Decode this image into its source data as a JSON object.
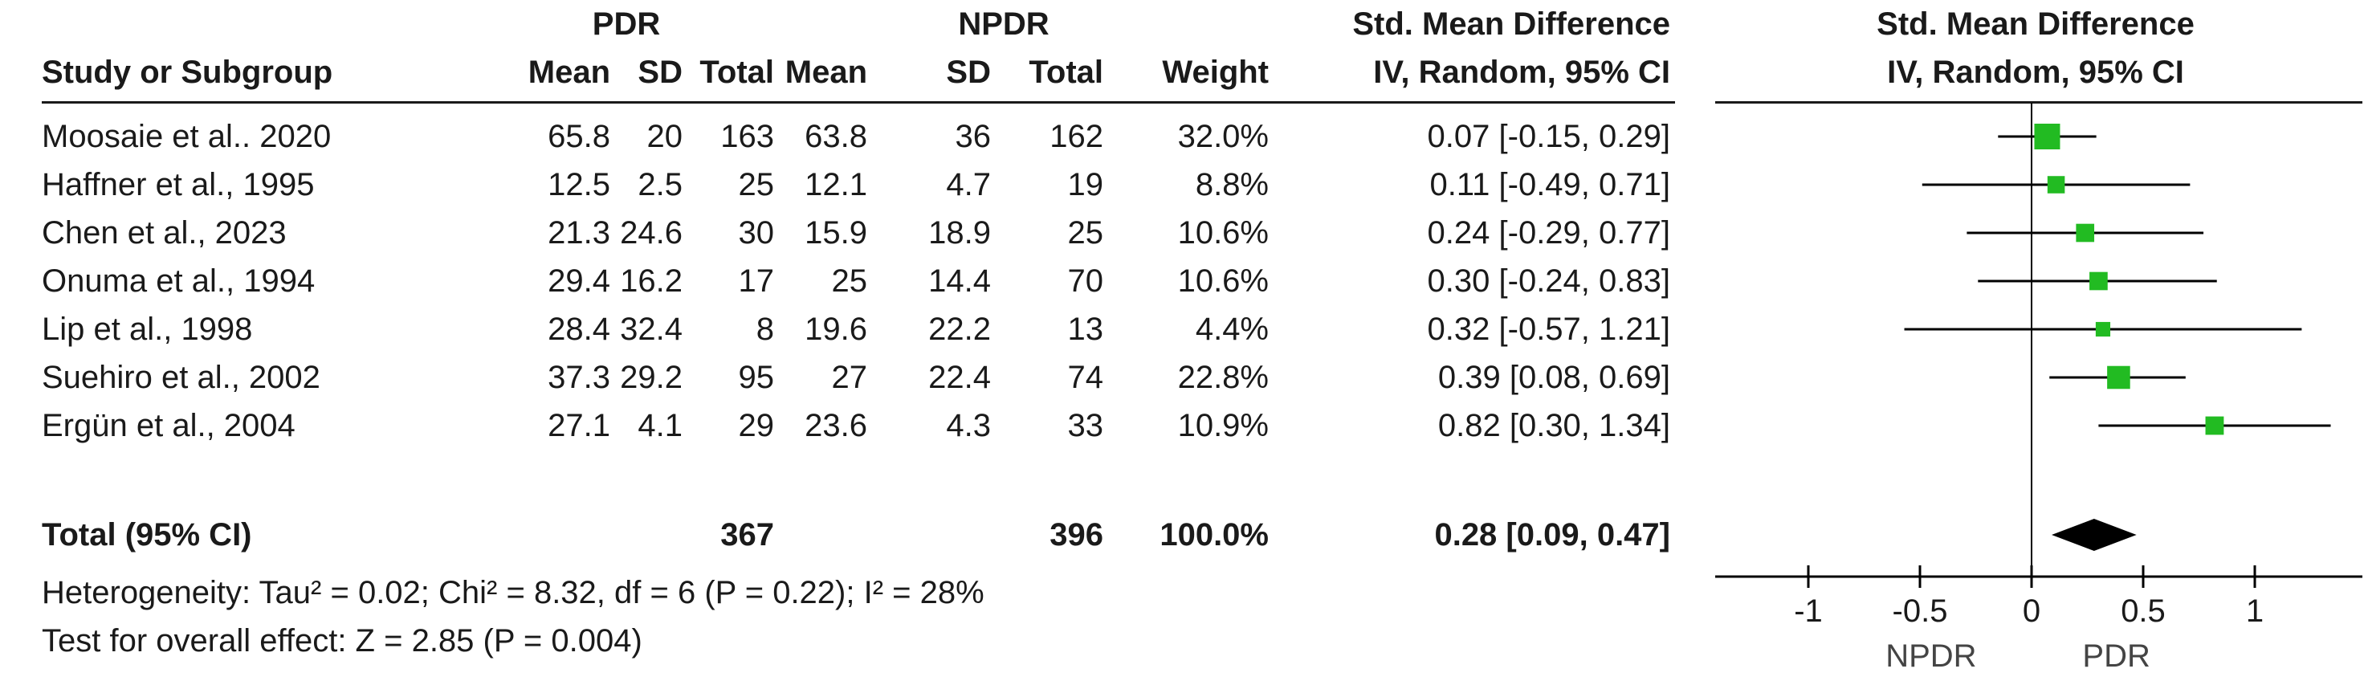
{
  "header": {
    "group1": "PDR",
    "group2": "NPDR",
    "smd_title": "Std. Mean Difference",
    "smd_sub": "IV, Random, 95% CI",
    "plot_title": "Std. Mean Difference",
    "plot_sub": "IV, Random, 95% CI",
    "cols": {
      "study": "Study or Subgroup",
      "mean1": "Mean",
      "sd1": "SD",
      "total1": "Total",
      "mean2": "Mean",
      "sd2": "SD",
      "total2": "Total",
      "weight": "Weight"
    }
  },
  "rows": [
    {
      "study": "Moosaie et al.. 2020",
      "mean1": "65.8",
      "sd1": "20",
      "total1": "163",
      "mean2": "63.8",
      "sd2": "36",
      "total2": "162",
      "weight": "32.0%",
      "ci": "0.07 [-0.15, 0.29]"
    },
    {
      "study": "Haffner et al., 1995",
      "mean1": "12.5",
      "sd1": "2.5",
      "total1": "25",
      "mean2": "12.1",
      "sd2": "4.7",
      "total2": "19",
      "weight": "8.8%",
      "ci": "0.11 [-0.49, 0.71]"
    },
    {
      "study": "Chen et al., 2023",
      "mean1": "21.3",
      "sd1": "24.6",
      "total1": "30",
      "mean2": "15.9",
      "sd2": "18.9",
      "total2": "25",
      "weight": "10.6%",
      "ci": "0.24 [-0.29, 0.77]"
    },
    {
      "study": "Onuma et al., 1994",
      "mean1": "29.4",
      "sd1": "16.2",
      "total1": "17",
      "mean2": "25",
      "sd2": "14.4",
      "total2": "70",
      "weight": "10.6%",
      "ci": "0.30 [-0.24, 0.83]"
    },
    {
      "study": "Lip et al., 1998",
      "mean1": "28.4",
      "sd1": "32.4",
      "total1": "8",
      "mean2": "19.6",
      "sd2": "22.2",
      "total2": "13",
      "weight": "4.4%",
      "ci": "0.32 [-0.57, 1.21]"
    },
    {
      "study": "Suehiro et al., 2002",
      "mean1": "37.3",
      "sd1": "29.2",
      "total1": "95",
      "mean2": "27",
      "sd2": "22.4",
      "total2": "74",
      "weight": "22.8%",
      "ci": "0.39 [0.08, 0.69]"
    },
    {
      "study": "Ergün et al., 2004",
      "mean1": "27.1",
      "sd1": "4.1",
      "total1": "29",
      "mean2": "23.6",
      "sd2": "4.3",
      "total2": "33",
      "weight": "10.9%",
      "ci": "0.82 [0.30, 1.34]"
    }
  ],
  "total": {
    "label": "Total (95% CI)",
    "total1": "367",
    "total2": "396",
    "weight": "100.0%",
    "ci": "0.28 [0.09, 0.47]"
  },
  "footer": {
    "heterogeneity": "Heterogeneity: Tau² = 0.02; Chi² = 8.32, df = 6 (P = 0.22); I² = 28%",
    "overall": "Test for overall effect: Z = 2.85 (P = 0.004)"
  },
  "chart_data": {
    "type": "forest",
    "title": "Std. Mean Difference",
    "subtitle": "IV, Random, 95% CI",
    "xlim": [
      -1.5,
      1.5
    ],
    "xticks": [
      -1,
      -0.5,
      0,
      0.5,
      1
    ],
    "xtick_labels": [
      "-1",
      "-0.5",
      "0",
      "0.5",
      "1"
    ],
    "favours_left": "NPDR",
    "favours_right": "PDR",
    "point_color": "#22bb22",
    "line_color": "#000000",
    "diamond_color": "#000000",
    "studies": [
      {
        "label": "Moosaie et al.. 2020",
        "est": 0.07,
        "lo": -0.15,
        "hi": 0.29,
        "weight": 32.0
      },
      {
        "label": "Haffner et al., 1995",
        "est": 0.11,
        "lo": -0.49,
        "hi": 0.71,
        "weight": 8.8
      },
      {
        "label": "Chen et al., 2023",
        "est": 0.24,
        "lo": -0.29,
        "hi": 0.77,
        "weight": 10.6
      },
      {
        "label": "Onuma et al., 1994",
        "est": 0.3,
        "lo": -0.24,
        "hi": 0.83,
        "weight": 10.6
      },
      {
        "label": "Lip et al., 1998",
        "est": 0.32,
        "lo": -0.57,
        "hi": 1.21,
        "weight": 4.4
      },
      {
        "label": "Suehiro et al., 2002",
        "est": 0.39,
        "lo": 0.08,
        "hi": 0.69,
        "weight": 22.8
      },
      {
        "label": "Ergün et al., 2004",
        "est": 0.82,
        "lo": 0.3,
        "hi": 1.34,
        "weight": 10.9
      }
    ],
    "pooled": {
      "est": 0.28,
      "lo": 0.09,
      "hi": 0.47
    }
  }
}
